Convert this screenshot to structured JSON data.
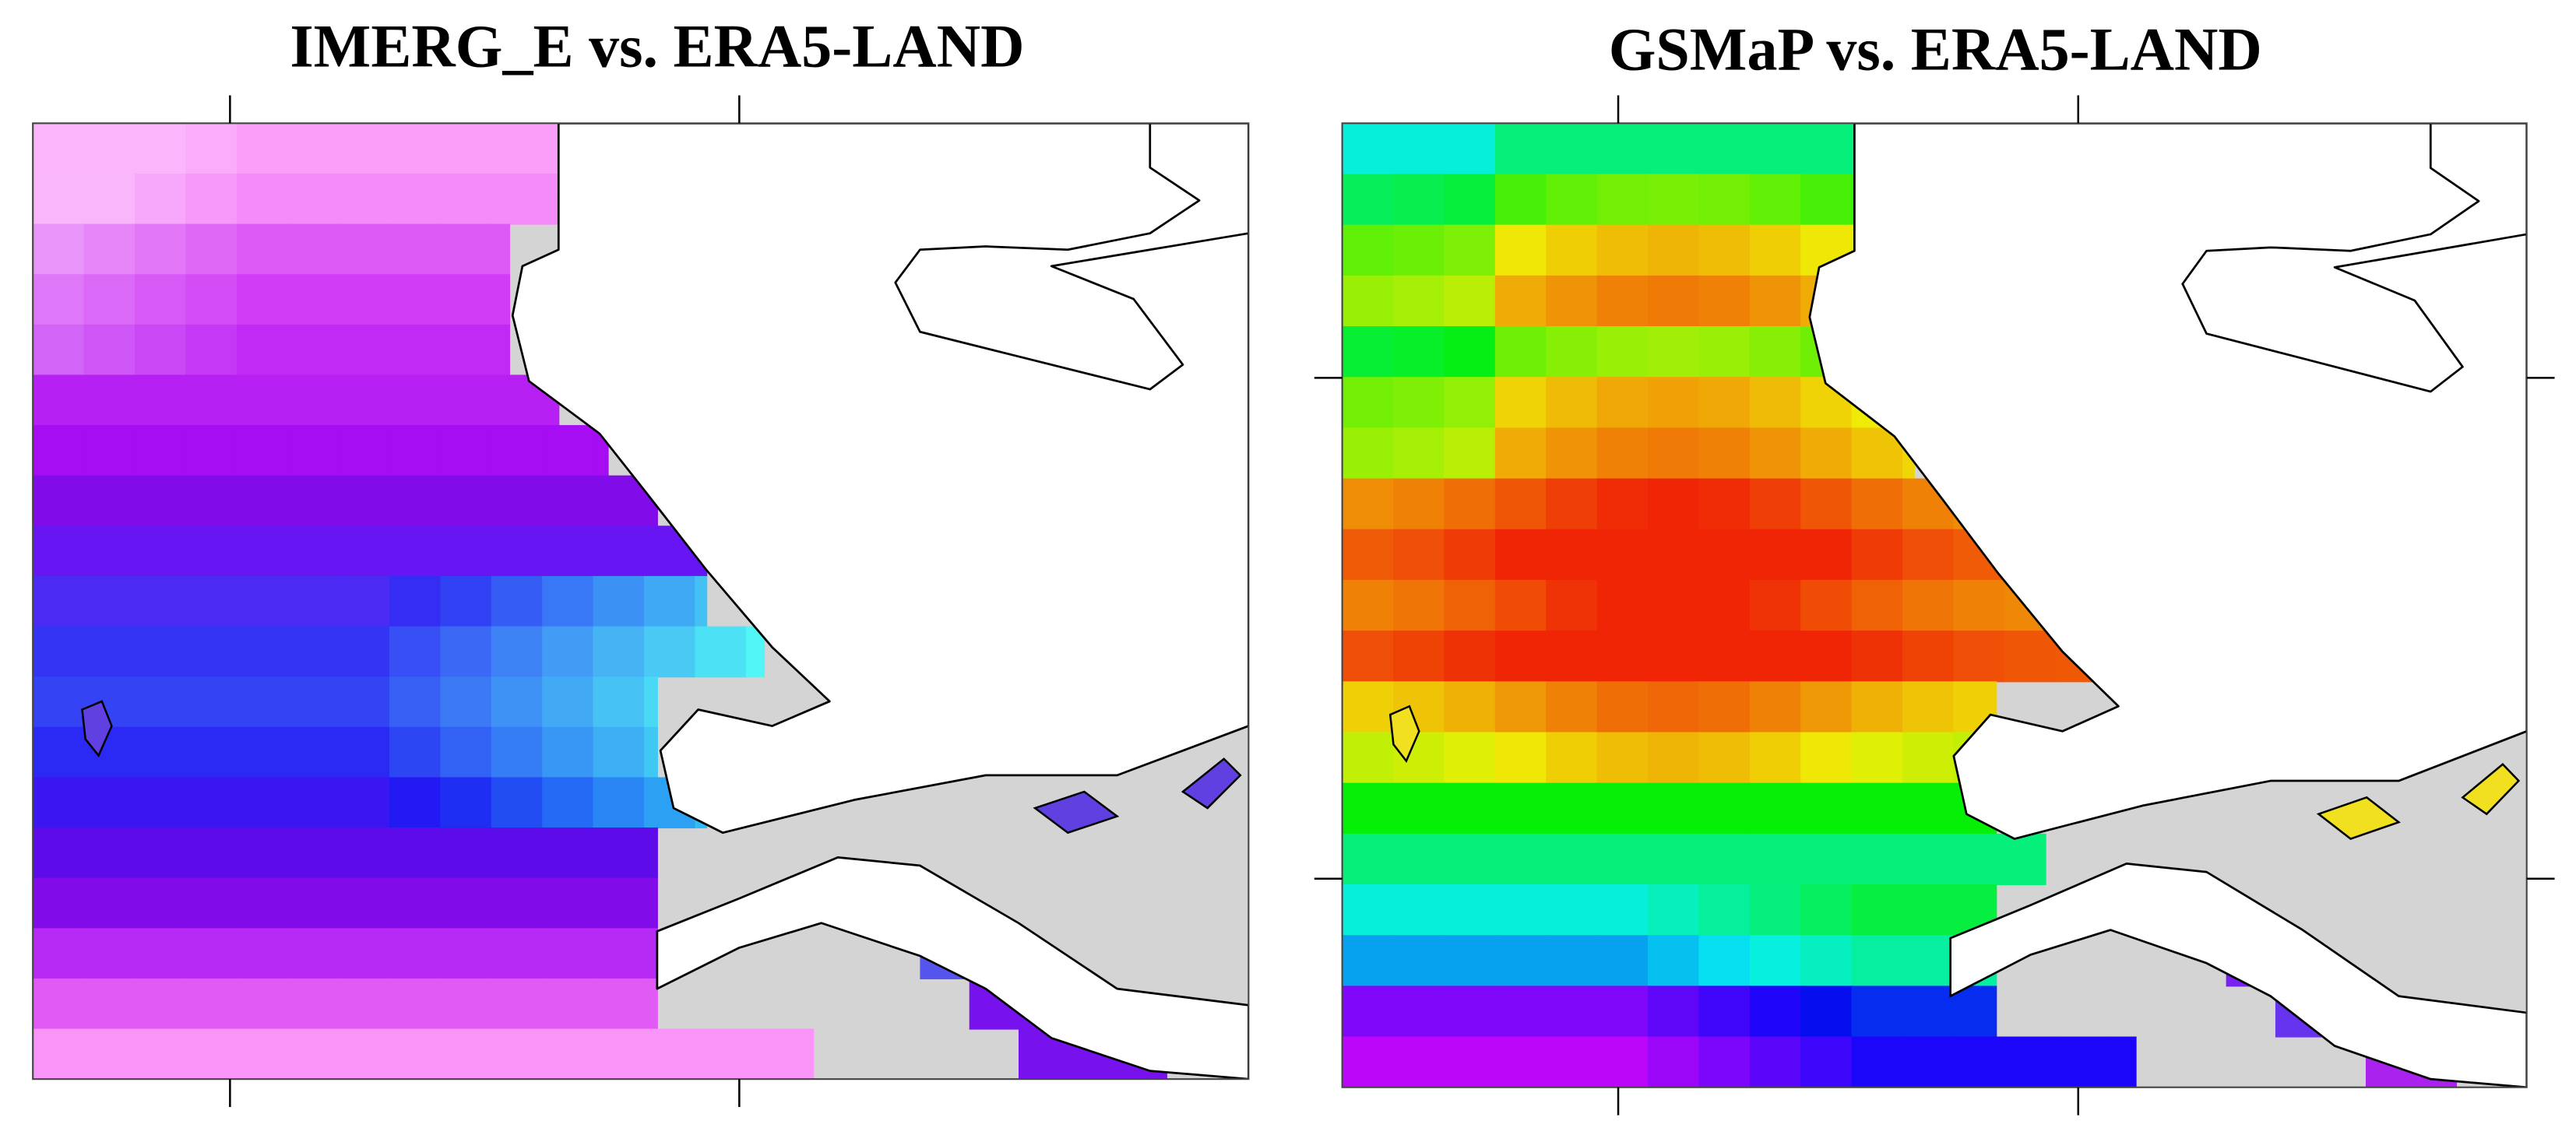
{
  "panels": [
    {
      "title": "IMERG_E vs. ERA5-LAND"
    },
    {
      "title": "GSMaP vs. ERA5-LAND"
    }
  ]
}
